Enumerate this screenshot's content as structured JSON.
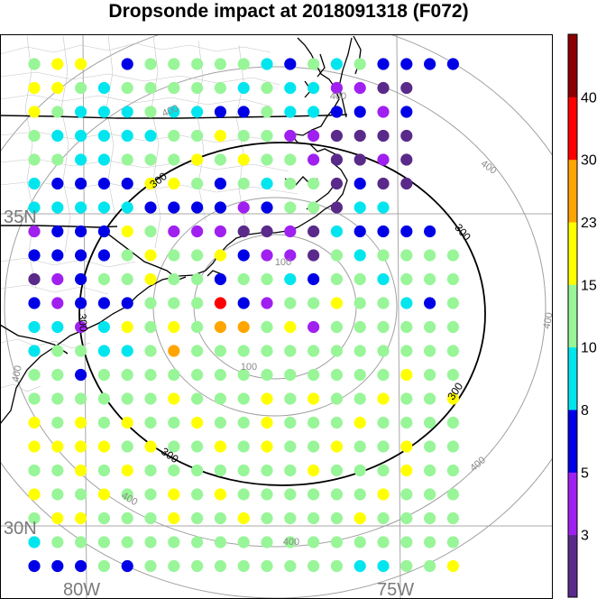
{
  "title": "Dropsonde impact at 2018091318 (F072)",
  "axes": {
    "lat_labels": [
      "35N",
      "30N"
    ],
    "lon_labels": [
      "80W",
      "75W"
    ]
  },
  "range_rings": {
    "gray_labels": [
      "100",
      "400"
    ],
    "black_label": "300"
  },
  "colorbar": {
    "colors": [
      "#5a2a8a",
      "#a020f0",
      "#0000e6",
      "#00e5ee",
      "#98f598",
      "#ffff00",
      "#ffa500",
      "#ff0000",
      "#8b0000"
    ],
    "labels": [
      "3",
      "5",
      "8",
      "10",
      "15",
      "23",
      "30",
      "40"
    ]
  },
  "grid": {
    "legend": {
      "P": "#5a2a8a",
      "V": "#a020f0",
      "B": "#0000e6",
      "C": "#00e5ee",
      "G": "#98f598",
      "Y": "#ffff00",
      "O": "#ffa500",
      "R": "#ff0000"
    },
    "rows": [
      "GYY.BGGGGGCBGCGBBBB",
      "YYGCGGGGGCGCCVVPP",
      "YGCCCGCCBBGCCBBVB",
      "GCCCCCGGYGGVVPPPP",
      "GGCCGGGYGYGGVPPVP",
      "CBBBBYYGBGCGGPBPP",
      "CCCCCBBBBVBGGPCC",
      "VBBBYGVVVPPVPCBBBB",
      "BBBBGYGGYBVVPGCGGGG",
      "PVBGGYGGBGGCBGGCGGG",
      "BVBBBGGGRBVGGYGGCBG",
      "CCVCYGYGOOGYVGGGGGG",
      "CGGCCGOGGGGGGGGGGGG",
      "GGBGGGGGGGGGGGGGYGG",
      "GGGGGGYGGGYGYGGYGGY",
      "YGYGYGGYGGYGGGYGGGG",
      "YYYYGYGGYGYGGYGGYGG",
      "GGYGYGGGGGGGYGGGYGG",
      "YGGYGGYGYGGGGGGYGGG",
      "GYYGGGYGGYGGGGYGGGG",
      "CGGGGGGGGGGGGGGGGGG",
      "BBBGBGGGGGGGGGCCGGY"
    ]
  }
}
